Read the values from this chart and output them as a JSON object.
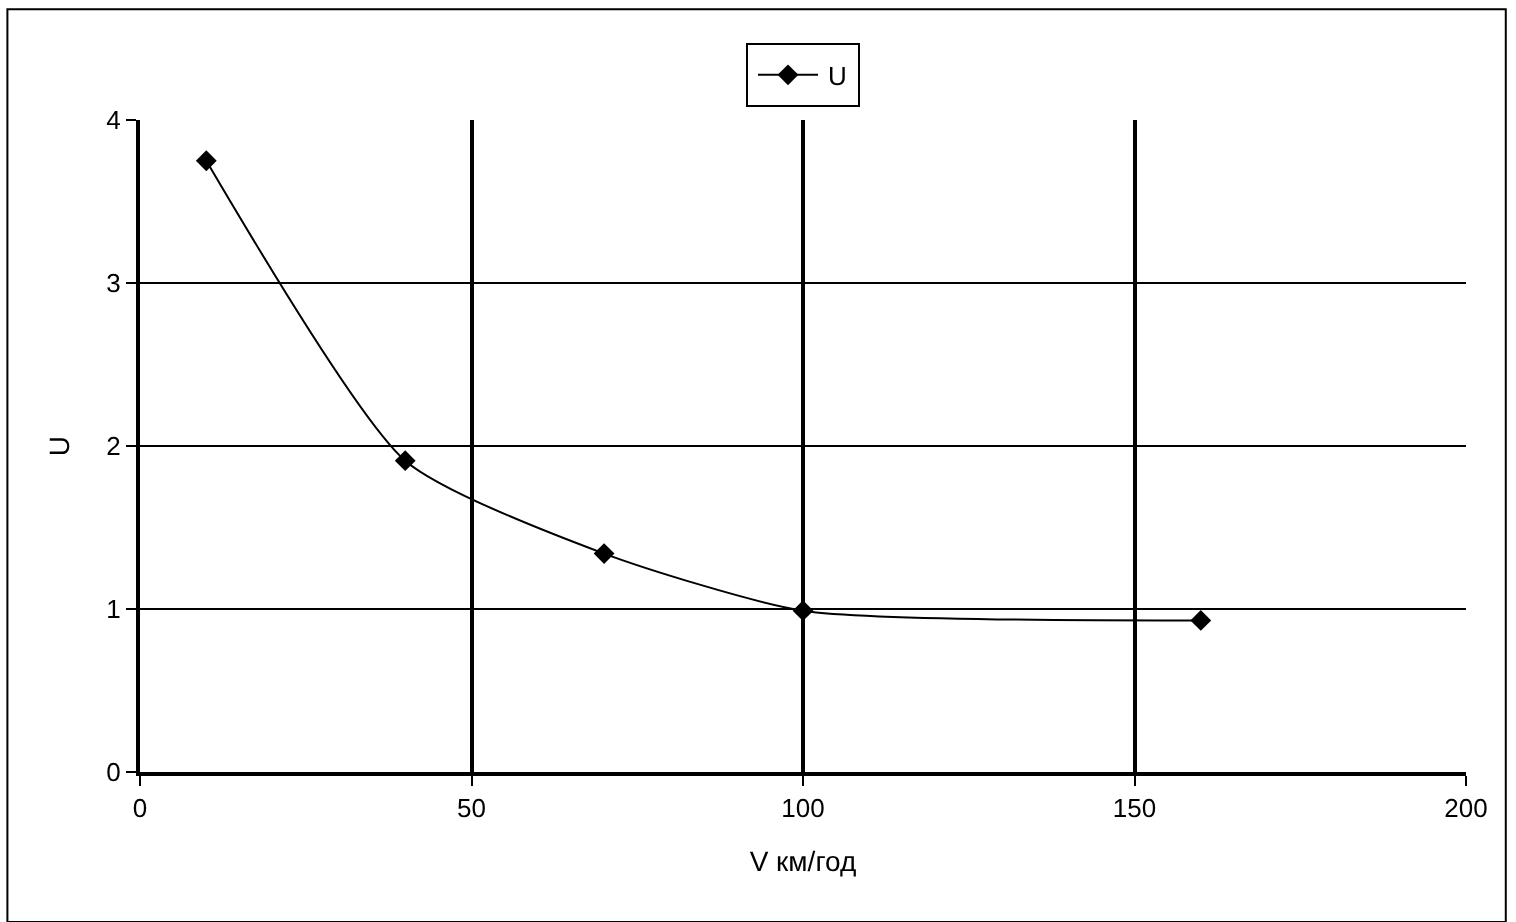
{
  "chart_data": {
    "type": "line",
    "xlabel": "V км/год",
    "ylabel": "U",
    "x": [
      10,
      40,
      70,
      100,
      160
    ],
    "series": [
      {
        "name": "U",
        "color": "#000000",
        "values": [
          3.75,
          1.91,
          1.34,
          0.99,
          0.93
        ]
      }
    ],
    "xlim": [
      0,
      200
    ],
    "xticks": [
      0,
      50,
      100,
      150,
      200
    ],
    "ylim": [
      0,
      4
    ],
    "yticks": [
      0,
      1,
      2,
      3,
      4
    ],
    "grid": true,
    "legend": "top",
    "marker": "diamond",
    "line_style": "solid"
  }
}
